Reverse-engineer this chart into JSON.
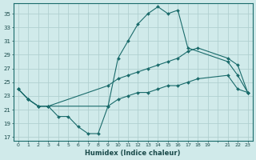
{
  "title": "",
  "xlabel": "Humidex (Indice chaleur)",
  "ylabel": "",
  "bg_color": "#d0eaea",
  "grid_color": "#b0d0d0",
  "line_color": "#1a6b6b",
  "xlim": [
    -0.5,
    23.5
  ],
  "ylim": [
    16.5,
    36.5
  ],
  "yticks": [
    17,
    19,
    21,
    23,
    25,
    27,
    29,
    31,
    33,
    35
  ],
  "xtick_positions": [
    0,
    1,
    2,
    3,
    4,
    5,
    6,
    7,
    8,
    9,
    10,
    11,
    12,
    13,
    14,
    15,
    16,
    17,
    18,
    19,
    20,
    21,
    22,
    23
  ],
  "xtick_labels": [
    "0",
    "1",
    "2",
    "3",
    "4",
    "5",
    "6",
    "7",
    "8",
    "9",
    "10",
    "11",
    "12",
    "13",
    "14",
    "15",
    "16",
    "17",
    "18",
    "19",
    "",
    "21",
    "22",
    "23"
  ],
  "line1_x": [
    0,
    1,
    2,
    3,
    4,
    5,
    6,
    7,
    8,
    9,
    10,
    11,
    12,
    13,
    14,
    15,
    16,
    17,
    21,
    22,
    23
  ],
  "line1_y": [
    24.0,
    22.5,
    21.5,
    21.5,
    20.0,
    20.0,
    18.5,
    17.5,
    17.5,
    21.5,
    28.5,
    31.0,
    33.5,
    35.0,
    36.0,
    35.0,
    35.5,
    30.0,
    28.0,
    26.0,
    23.5
  ],
  "line2_x": [
    0,
    1,
    2,
    3,
    9,
    10,
    11,
    12,
    13,
    14,
    15,
    16,
    17,
    18,
    21,
    22,
    23
  ],
  "line2_y": [
    24.0,
    22.5,
    21.5,
    21.5,
    24.5,
    25.5,
    26.0,
    26.5,
    27.0,
    27.5,
    28.0,
    28.5,
    29.5,
    30.0,
    28.5,
    27.5,
    23.5
  ],
  "line3_x": [
    0,
    1,
    2,
    3,
    9,
    10,
    11,
    12,
    13,
    14,
    15,
    16,
    17,
    18,
    21,
    22,
    23
  ],
  "line3_y": [
    24.0,
    22.5,
    21.5,
    21.5,
    21.5,
    22.5,
    23.0,
    23.5,
    23.5,
    24.0,
    24.5,
    24.5,
    25.0,
    25.5,
    26.0,
    24.0,
    23.5
  ]
}
